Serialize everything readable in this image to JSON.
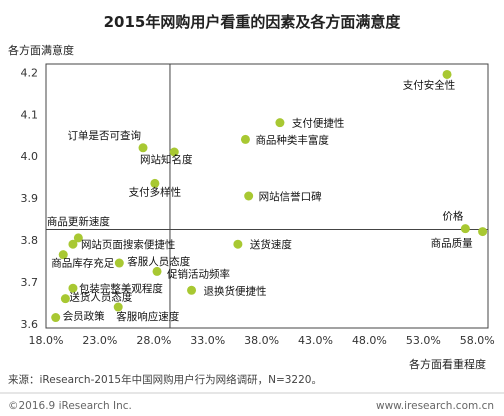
{
  "chart_data": {
    "type": "scatter",
    "title": "2015年网购用户看重的因素及各方面满意度",
    "xlabel": "各方面看重程度",
    "ylabel": "各方面满意度",
    "xlim": [
      0.18,
      0.59
    ],
    "ylim": [
      3.59,
      4.22
    ],
    "xticks": [
      0.18,
      0.23,
      0.28,
      0.33,
      0.38,
      0.43,
      0.48,
      0.53,
      0.58
    ],
    "xtick_labels": [
      "18.0%",
      "23.0%",
      "28.0%",
      "33.0%",
      "38.0%",
      "43.0%",
      "48.0%",
      "53.0%",
      "58.0%"
    ],
    "yticks": [
      3.6,
      3.7,
      3.8,
      3.9,
      4.0,
      4.1,
      4.2
    ],
    "ytick_labels": [
      "3.6",
      "3.7",
      "3.8",
      "3.9",
      "4.0",
      "4.1",
      "4.2"
    ],
    "quadrant_lines": {
      "x": 0.295,
      "y": 3.825
    },
    "marker_color": "#a8c832",
    "points": [
      {
        "label": "支付安全性",
        "x": 0.552,
        "y": 4.195
      },
      {
        "label": "支付便捷性",
        "x": 0.397,
        "y": 4.08
      },
      {
        "label": "商品种类丰富度",
        "x": 0.365,
        "y": 4.04
      },
      {
        "label": "订单是否可查询",
        "x": 0.27,
        "y": 4.02
      },
      {
        "label": "网站知名度",
        "x": 0.299,
        "y": 4.01
      },
      {
        "label": "支付多样性",
        "x": 0.281,
        "y": 3.935
      },
      {
        "label": "网站信誉口碑",
        "x": 0.368,
        "y": 3.905
      },
      {
        "label": "价格",
        "x": 0.569,
        "y": 3.827
      },
      {
        "label": "商品质量",
        "x": 0.585,
        "y": 3.82
      },
      {
        "label": "商品更新速度",
        "x": 0.21,
        "y": 3.805
      },
      {
        "label": "网站页面搜索便捷性",
        "x": 0.205,
        "y": 3.79
      },
      {
        "label": "送货速度",
        "x": 0.358,
        "y": 3.79
      },
      {
        "label": "商品库存充足",
        "x": 0.196,
        "y": 3.765
      },
      {
        "label": "客服人员态度",
        "x": 0.248,
        "y": 3.745
      },
      {
        "label": "促销活动频率",
        "x": 0.283,
        "y": 3.725
      },
      {
        "label": "包装完整美观程度",
        "x": 0.205,
        "y": 3.685
      },
      {
        "label": "退换货便捷性",
        "x": 0.315,
        "y": 3.68
      },
      {
        "label": "送货人员态度",
        "x": 0.198,
        "y": 3.66
      },
      {
        "label": "客服响应速度",
        "x": 0.247,
        "y": 3.64
      },
      {
        "label": "会员政策",
        "x": 0.189,
        "y": 3.615
      }
    ]
  },
  "source": "来源：iResearch-2015年中国网购用户行为网络调研，N=3220。",
  "footer": {
    "copyright": "©2016.9 iResearch Inc.",
    "website": "www.iresearch.com.cn"
  }
}
